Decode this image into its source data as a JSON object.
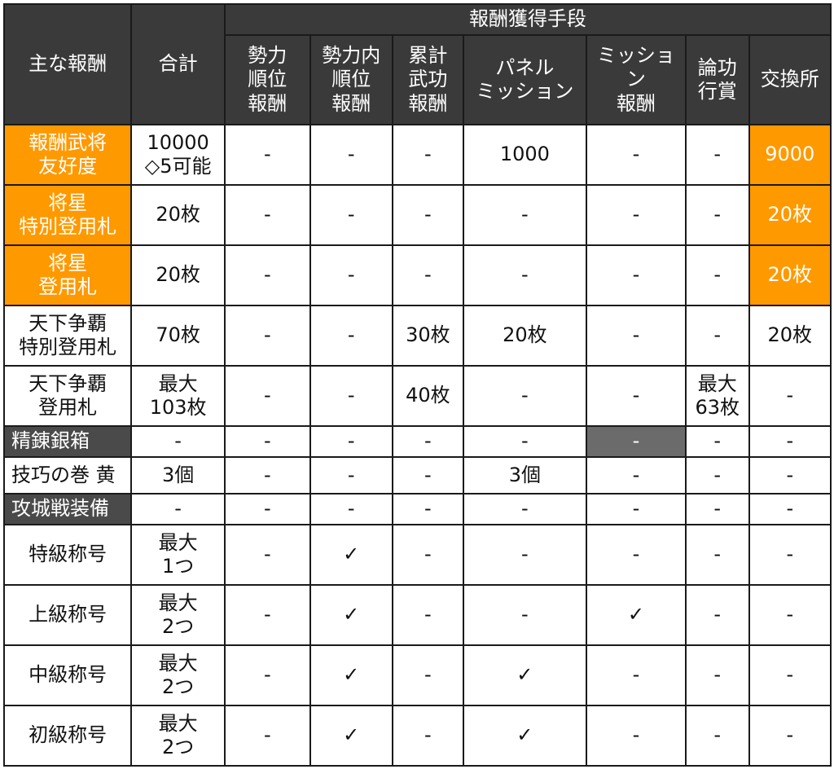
{
  "headers": {
    "main_reward": "主な報酬",
    "total": "合計",
    "method_group": "報酬獲得手段",
    "methods": [
      "勢力\n順位\n報酬",
      "勢力内\n順位\n報酬",
      "累計\n武功\n報酬",
      "パネル\nミッション",
      "ミッション\n報酬",
      "論功\n行賞",
      "交換所"
    ]
  },
  "rows": [
    {
      "name": "報酬武将\n友好度",
      "total": "10000\n◇5可能",
      "cells": [
        "-",
        "-",
        "-",
        "1000",
        "-",
        "-",
        "9000"
      ]
    },
    {
      "name": "将星\n特別登用札",
      "total": "20枚",
      "cells": [
        "-",
        "-",
        "-",
        "-",
        "-",
        "-",
        "20枚"
      ]
    },
    {
      "name": "将星\n登用札",
      "total": "20枚",
      "cells": [
        "-",
        "-",
        "-",
        "-",
        "-",
        "-",
        "20枚"
      ]
    },
    {
      "name": "天下争覇\n特別登用札",
      "total": "70枚",
      "cells": [
        "-",
        "-",
        "30枚",
        "20枚",
        "-",
        "-",
        "20枚"
      ]
    },
    {
      "name": "天下争覇\n登用札",
      "total": "最大\n103枚",
      "cells": [
        "-",
        "-",
        "40枚",
        "-",
        "-",
        "最大\n63枚",
        "-"
      ]
    },
    {
      "name": "精錬銀箱",
      "total": "-",
      "cells": [
        "-",
        "-",
        "-",
        "-",
        "-",
        "-",
        "-"
      ]
    },
    {
      "name": "技巧の巻 黄",
      "total": "3個",
      "cells": [
        "-",
        "-",
        "-",
        "3個",
        "-",
        "-",
        "-"
      ]
    },
    {
      "name": "攻城戦装備",
      "total": "-",
      "cells": [
        "-",
        "-",
        "-",
        "-",
        "-",
        "-",
        "-"
      ]
    },
    {
      "name": "特級称号",
      "total": "最大\n1つ",
      "cells": [
        "-",
        "✓",
        "-",
        "-",
        "-",
        "-",
        "-"
      ]
    },
    {
      "name": "上級称号",
      "total": "最大\n2つ",
      "cells": [
        "-",
        "✓",
        "-",
        "-",
        "✓",
        "-",
        "-"
      ]
    },
    {
      "name": "中級称号",
      "total": "最大\n2つ",
      "cells": [
        "-",
        "✓",
        "-",
        "✓",
        "-",
        "-",
        "-"
      ]
    },
    {
      "name": "初級称号",
      "total": "最大\n2つ",
      "cells": [
        "-",
        "✓",
        "-",
        "✓",
        "-",
        "-",
        "-"
      ]
    }
  ],
  "colors": {
    "header": "#3a3a3a",
    "highlight_orange": "#ff9900",
    "dark_label": "#4a4a4a",
    "gray_cell": "#6b6b6b"
  }
}
